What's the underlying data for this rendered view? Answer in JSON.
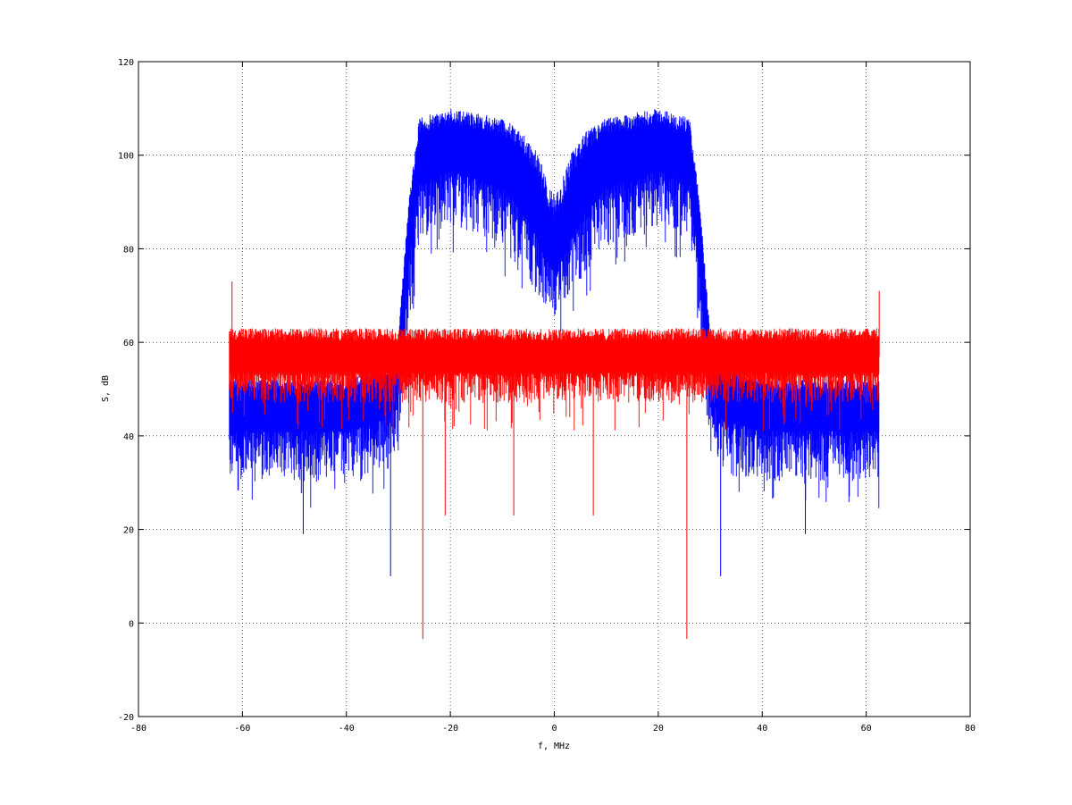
{
  "chart_data": {
    "type": "line",
    "title": "",
    "xlabel": "f, MHz",
    "ylabel": "S, dB",
    "xlim": [
      -80,
      80
    ],
    "ylim": [
      -20,
      120
    ],
    "xticks": [
      -80,
      -60,
      -40,
      -20,
      0,
      20,
      40,
      60,
      80
    ],
    "yticks": [
      -20,
      0,
      20,
      40,
      60,
      80,
      100,
      120
    ],
    "xtick_labels": [
      "-80",
      "-60",
      "-40",
      "-20",
      "0",
      "20",
      "40",
      "60",
      "80"
    ],
    "ytick_labels": [
      "-20",
      "0",
      "20",
      "40",
      "60",
      "80",
      "100",
      "120"
    ],
    "grid": true,
    "legend": "none",
    "x_range": [
      -62.5,
      62.5
    ],
    "series": [
      {
        "color": "#0000ff",
        "description_envelope": {
          "x": [
            -62.5,
            -40,
            -32,
            -30,
            -28,
            -26,
            -20,
            -10,
            -6,
            -3,
            -1,
            0,
            1,
            3,
            6,
            10,
            20,
            26,
            28,
            30,
            32,
            40,
            62.5
          ],
          "upper": [
            52,
            52,
            55,
            62,
            90,
            108,
            110,
            108,
            105,
            100,
            93,
            92,
            93,
            100,
            105,
            108,
            110,
            108,
            90,
            62,
            55,
            52,
            52
          ],
          "mean": [
            47,
            47,
            50,
            55,
            85,
            100,
            103,
            100,
            95,
            88,
            82,
            80,
            82,
            88,
            95,
            100,
            103,
            100,
            85,
            55,
            50,
            47,
            47
          ],
          "lower": [
            30,
            30,
            32,
            36,
            62,
            82,
            85,
            80,
            75,
            70,
            68,
            65,
            68,
            70,
            75,
            80,
            85,
            82,
            62,
            36,
            32,
            30,
            30
          ]
        },
        "spikes": [
          {
            "x": -31.5,
            "y": 10
          },
          {
            "x": 32,
            "y": 10
          },
          {
            "x": -48.3,
            "y": 19
          },
          {
            "x": 48.3,
            "y": 19
          }
        ]
      },
      {
        "color": "#ff0000",
        "description_envelope": {
          "x": [
            -62.5,
            62.5
          ],
          "upper": [
            63,
            63
          ],
          "mean": [
            57,
            57
          ],
          "lower": [
            47,
            47
          ]
        },
        "spikes": [
          {
            "x": -25.3,
            "y": -3.4
          },
          {
            "x": 25.5,
            "y": -3.4
          },
          {
            "x": -62,
            "y": 73
          },
          {
            "x": 62.5,
            "y": 71
          },
          {
            "x": -21,
            "y": 23
          },
          {
            "x": -7.8,
            "y": 23
          },
          {
            "x": 7.5,
            "y": 23
          }
        ]
      }
    ]
  }
}
